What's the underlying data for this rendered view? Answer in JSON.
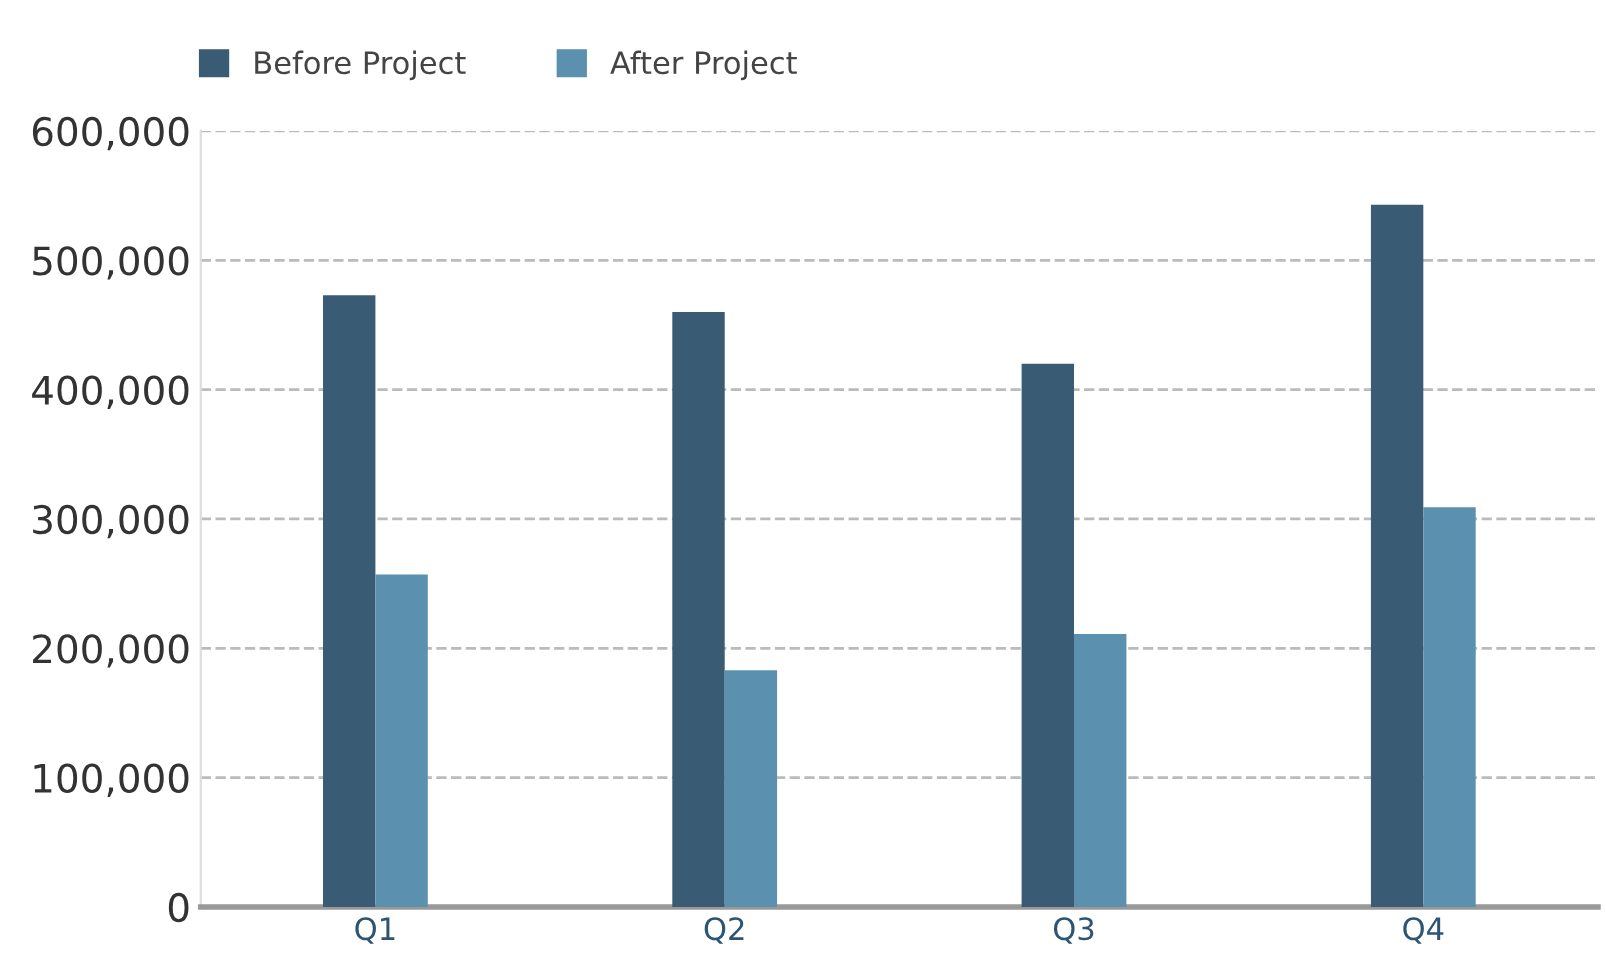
{
  "chart_data": {
    "type": "bar",
    "categories": [
      "Q1",
      "Q2",
      "Q3",
      "Q4"
    ],
    "series": [
      {
        "name": "Before Project",
        "color": "#395b73",
        "values": [
          473000,
          460000,
          420000,
          543000
        ]
      },
      {
        "name": "After Project",
        "color": "#5b91ae",
        "values": [
          257000,
          183000,
          211000,
          309000
        ]
      }
    ],
    "ylim": [
      0,
      600000
    ],
    "yticks": [
      0,
      {
        "value": 100000,
        "label": "100,000"
      },
      {
        "value": 200000,
        "label": "200,000"
      },
      {
        "value": 300000,
        "label": "300,000"
      },
      {
        "value": 400000,
        "label": "400,000"
      },
      {
        "value": 500000,
        "label": "500,000"
      },
      {
        "value": 600000,
        "label": "600,000"
      }
    ],
    "grid": "y",
    "legend": "top left"
  }
}
